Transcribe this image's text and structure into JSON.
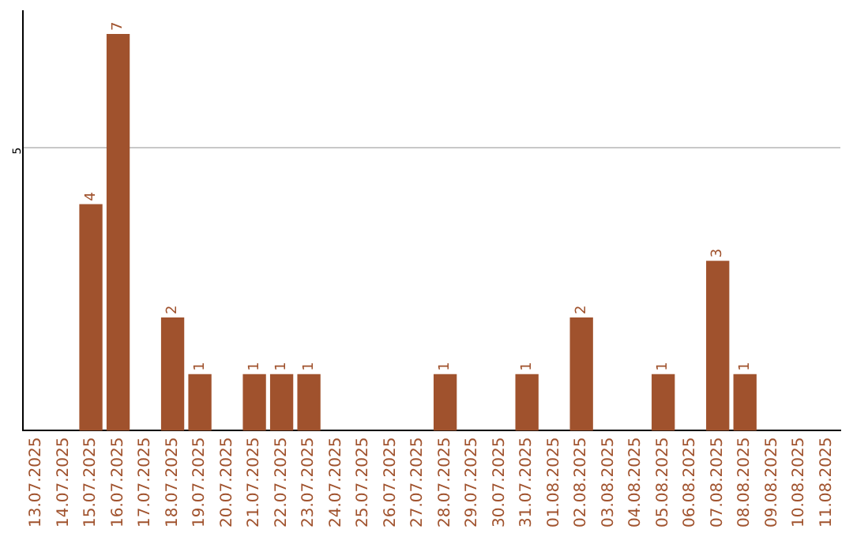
{
  "chart_data": {
    "type": "bar",
    "categories": [
      "13.07.2025",
      "14.07.2025",
      "15.07.2025",
      "16.07.2025",
      "17.07.2025",
      "18.07.2025",
      "19.07.2025",
      "20.07.2025",
      "21.07.2025",
      "22.07.2025",
      "23.07.2025",
      "24.07.2025",
      "25.07.2025",
      "26.07.2025",
      "27.07.2025",
      "28.07.2025",
      "29.07.2025",
      "30.07.2025",
      "31.07.2025",
      "01.08.2025",
      "02.08.2025",
      "03.08.2025",
      "04.08.2025",
      "05.08.2025",
      "06.08.2025",
      "07.08.2025",
      "08.08.2025",
      "09.08.2025",
      "10.08.2025",
      "11.08.2025"
    ],
    "values": [
      0,
      0,
      4,
      7,
      0,
      2,
      1,
      0,
      1,
      1,
      1,
      0,
      0,
      0,
      0,
      1,
      0,
      0,
      1,
      0,
      2,
      0,
      0,
      1,
      0,
      3,
      1,
      0,
      0,
      0
    ],
    "value_labels": [
      null,
      null,
      "4",
      "7",
      null,
      "2",
      "1",
      null,
      "1",
      "1",
      "1",
      null,
      null,
      null,
      null,
      "1",
      null,
      null,
      "1",
      null,
      "2",
      null,
      null,
      "1",
      null,
      "3",
      "1",
      null,
      null,
      null
    ],
    "color": "#a0522d",
    "ylim": [
      0,
      7.4
    ],
    "yticks": [
      5
    ],
    "grid": "y",
    "legend": false
  }
}
